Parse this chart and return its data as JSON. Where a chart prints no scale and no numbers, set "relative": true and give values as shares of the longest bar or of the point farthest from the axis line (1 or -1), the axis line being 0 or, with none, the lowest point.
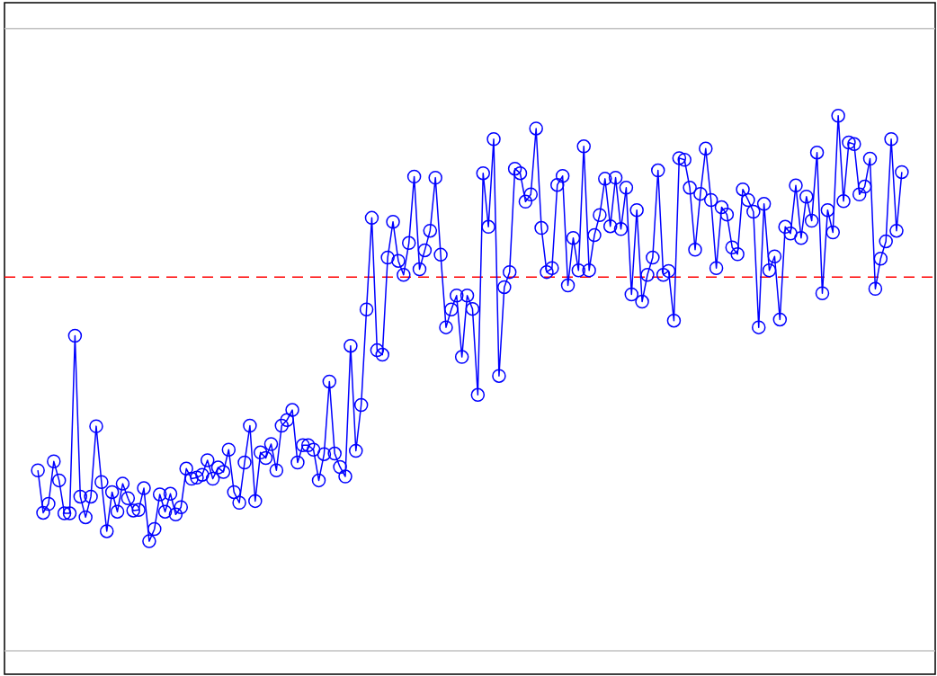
{
  "chart_data": {
    "type": "line",
    "relative": true,
    "marker": "circle",
    "line_style": "solid",
    "categories": [
      null,
      null,
      null,
      null,
      null,
      null,
      null,
      null,
      null,
      null,
      null,
      null,
      null,
      null,
      null,
      null,
      null,
      null,
      null,
      null,
      null,
      null,
      null,
      null,
      null,
      null,
      null,
      null,
      null,
      null,
      null,
      null,
      null,
      null,
      null,
      null,
      null,
      null,
      null,
      null,
      null,
      null,
      null,
      null,
      null,
      null,
      null,
      null,
      null,
      null,
      null,
      null,
      null,
      null,
      null,
      null,
      null,
      null,
      null,
      null,
      null,
      null,
      null,
      null,
      null,
      null,
      null,
      null,
      null,
      null,
      null,
      null,
      null,
      null,
      null,
      null,
      null,
      null,
      null,
      null,
      null,
      null,
      null,
      null,
      null,
      null,
      null,
      null,
      null,
      null,
      null,
      null,
      null,
      null,
      null,
      null,
      null,
      null,
      null,
      null,
      null,
      null,
      null,
      null,
      null,
      null,
      null,
      null,
      null,
      null,
      null,
      null,
      null,
      null,
      null,
      null,
      null,
      null,
      null,
      null,
      null,
      null,
      null,
      null,
      null,
      null,
      null,
      null,
      null,
      null,
      null,
      null,
      null,
      null,
      null,
      null,
      null,
      null,
      null,
      null,
      null,
      null,
      null,
      null,
      null,
      null,
      null,
      null,
      null,
      null,
      null,
      null,
      null,
      null,
      null,
      null,
      null,
      null,
      null,
      null,
      null,
      null,
      null,
      null
    ],
    "series": [
      {
        "color": "#0000ff",
        "values": [
          0.365,
          0.289,
          0.305,
          0.381,
          0.347,
          0.288,
          0.288,
          0.606,
          0.318,
          0.281,
          0.318,
          0.444,
          0.344,
          0.256,
          0.326,
          0.291,
          0.341,
          0.315,
          0.293,
          0.294,
          0.333,
          0.238,
          0.26,
          0.322,
          0.291,
          0.323,
          0.286,
          0.299,
          0.368,
          0.35,
          0.352,
          0.357,
          0.383,
          0.35,
          0.37,
          0.362,
          0.402,
          0.326,
          0.307,
          0.379,
          0.445,
          0.31,
          0.397,
          0.387,
          0.412,
          0.365,
          0.445,
          0.455,
          0.473,
          0.379,
          0.41,
          0.41,
          0.402,
          0.347,
          0.394,
          0.524,
          0.395,
          0.371,
          0.354,
          0.588,
          0.4,
          0.482,
          0.653,
          0.817,
          0.58,
          0.572,
          0.746,
          0.81,
          0.74,
          0.715,
          0.772,
          0.891,
          0.725,
          0.759,
          0.794,
          0.889,
          0.751,
          0.621,
          0.653,
          0.678,
          0.568,
          0.678,
          0.654,
          0.5,
          0.897,
          0.801,
          0.958,
          0.534,
          0.693,
          0.72,
          0.905,
          0.897,
          0.846,
          0.859,
          0.977,
          0.799,
          0.72,
          0.727,
          0.876,
          0.892,
          0.696,
          0.781,
          0.723,
          0.945,
          0.723,
          0.786,
          0.822,
          0.887,
          0.802,
          0.889,
          0.797,
          0.871,
          0.68,
          0.831,
          0.667,
          0.715,
          0.746,
          0.902,
          0.715,
          0.722,
          0.633,
          0.924,
          0.921,
          0.871,
          0.76,
          0.86,
          0.941,
          0.849,
          0.727,
          0.836,
          0.823,
          0.764,
          0.752,
          0.868,
          0.849,
          0.828,
          0.621,
          0.842,
          0.723,
          0.748,
          0.635,
          0.801,
          0.789,
          0.875,
          0.781,
          0.855,
          0.812,
          0.934,
          0.682,
          0.831,
          0.791,
          1,
          0.847,
          0.952,
          0.949,
          0.859,
          0.873,
          0.923,
          0.69,
          0.744,
          0.775,
          0.958,
          0.794,
          0.899
        ]
      }
    ],
    "ref_lines": [
      {
        "axis": "y",
        "value": 0.711,
        "color": "#ff0000",
        "line_style": "dashed"
      },
      {
        "axis": "y",
        "value": 1.156,
        "color": "#c0c0c0",
        "line_style": "solid"
      },
      {
        "axis": "y",
        "value": 0.042,
        "color": "#c0c0c0",
        "line_style": "solid"
      }
    ]
  }
}
